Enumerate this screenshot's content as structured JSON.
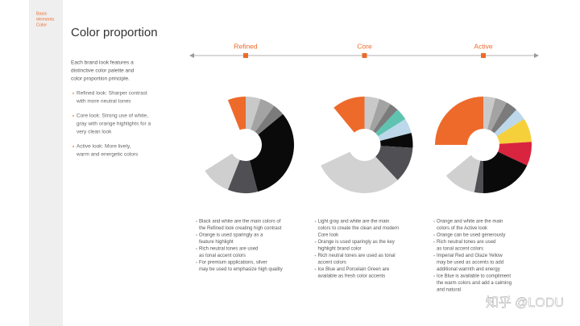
{
  "sidebar": [
    "Basic",
    "elements",
    "Color"
  ],
  "title": "Color proportion",
  "intro": [
    "Each brand look features a",
    "distinctive color palette and",
    "color proportion principle."
  ],
  "looks": [
    [
      "Refined look: Sharper contrast",
      "with more neutral tones"
    ],
    [
      "Core look: Strong use of white,",
      "gray with orange highlights for a",
      "very clean look"
    ],
    [
      "Active look: More lively,",
      "warm and energetic colors"
    ]
  ],
  "chart_data": [
    {
      "type": "pie",
      "title": "Refined",
      "values": [
        5,
        5,
        4,
        32,
        10,
        10,
        28,
        6
      ],
      "colors": [
        "#c9c9c9",
        "#a3a3a3",
        "#7b7b7b",
        "#0a0a0a",
        "#4f4f54",
        "#cfcfcf",
        "#ffffff",
        "#ee6a2a"
      ],
      "notes": [
        [
          "Black and white are the main colors of",
          "the Refined look creating high contrast"
        ],
        [
          "Orange is used sparingly as a",
          "feature highlight"
        ],
        [
          "Rich neutral tones are used",
          "as tonal accent colors"
        ],
        [
          "For premium applications, silver",
          "may be used to emphasize high quality"
        ]
      ]
    },
    {
      "type": "pie",
      "title": "Core",
      "values": [
        5,
        4,
        3,
        4,
        5,
        5,
        12,
        30,
        21,
        11
      ],
      "colors": [
        "#c9c9c9",
        "#a3a3a3",
        "#7b7b7b",
        "#5ec3b0",
        "#bcd8ea",
        "#0a0a0a",
        "#4f4f54",
        "#d2d2d2",
        "#ffffff",
        "#ee6a2a"
      ],
      "notes": [
        [
          "Light gray and white are the main",
          "colors to create the clean and modern",
          "Core look"
        ],
        [
          "Orange is used sparingly as the key",
          "highlight brand color"
        ],
        [
          "Rich neutral tones are used as tonal",
          "accent colors"
        ],
        [
          "Ice Blue and Porcelain Green are",
          "available as fresh color accents"
        ]
      ]
    },
    {
      "type": "pie",
      "title": "Active",
      "values": [
        4,
        4,
        4,
        4,
        8,
        8,
        18,
        3,
        11,
        11,
        25
      ],
      "colors": [
        "#c9c9c9",
        "#a3a3a3",
        "#7b7b7b",
        "#bcd8ea",
        "#f5d03a",
        "#d9243f",
        "#0a0a0a",
        "#4f4f54",
        "#d0d0d0",
        "#ffffff",
        "#ee6a2a"
      ],
      "notes": [
        [
          "Orange and white are the main",
          "colors of the Active look"
        ],
        [
          "Orange can be used generously"
        ],
        [
          "Rich neutral tones are used",
          "as tonal accent colors"
        ],
        [
          "Imperial Red and Glaze Yellow",
          "may be used as accents to add",
          "additional warmth and energy"
        ],
        [
          "Ice Blue is available to compliment",
          "the warm colors and add a calming",
          "and natural"
        ]
      ]
    }
  ],
  "watermark": "知乎 @LODU"
}
